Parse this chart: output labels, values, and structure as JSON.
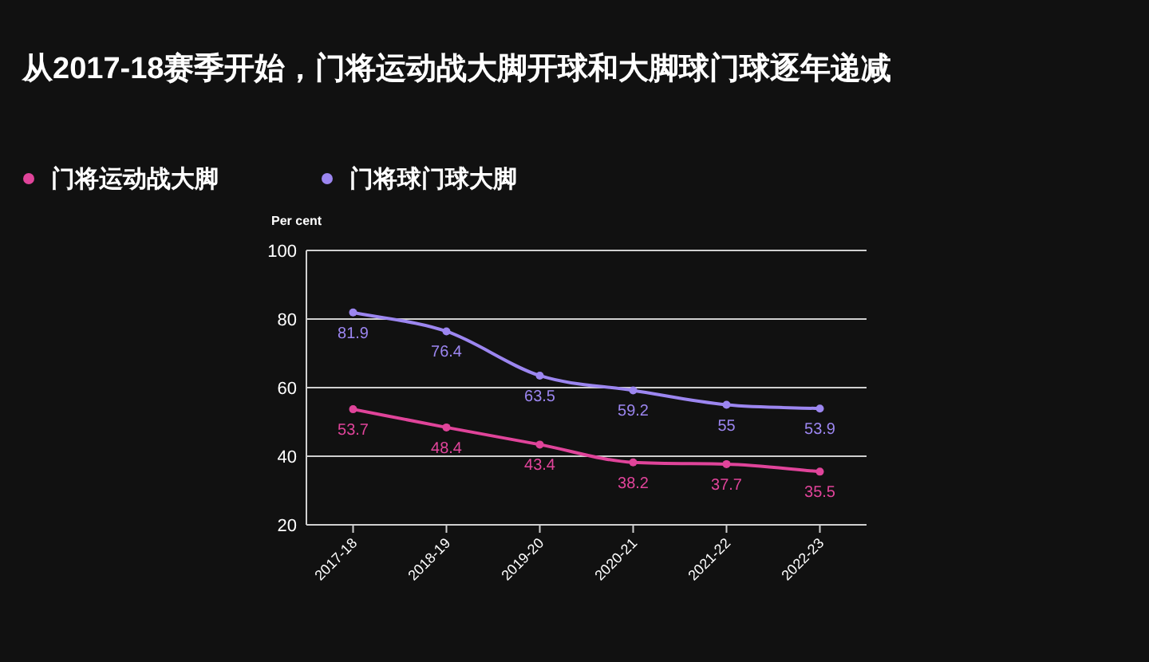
{
  "chart_data": {
    "type": "line",
    "title": "从2017-18赛季开始，门将运动战大脚开球和大脚球门球逐年递减",
    "ylabel": "Per cent",
    "categories": [
      "2017-18",
      "2018-19",
      "2019-20",
      "2020-21",
      "2021-22",
      "2022-23"
    ],
    "series": [
      {
        "name": "门将运动战大脚",
        "color": "#e0449a",
        "values": [
          53.7,
          48.4,
          43.4,
          38.2,
          37.7,
          35.5
        ]
      },
      {
        "name": "门将球门球大脚",
        "color": "#9c86f0",
        "values": [
          81.9,
          76.4,
          63.5,
          59.2,
          55,
          53.9
        ]
      }
    ],
    "ylim": [
      20,
      100
    ],
    "yticks": [
      20,
      40,
      60,
      80,
      100
    ],
    "grid": "y",
    "legend": "top left",
    "data_labels": true,
    "marker": "circle"
  }
}
